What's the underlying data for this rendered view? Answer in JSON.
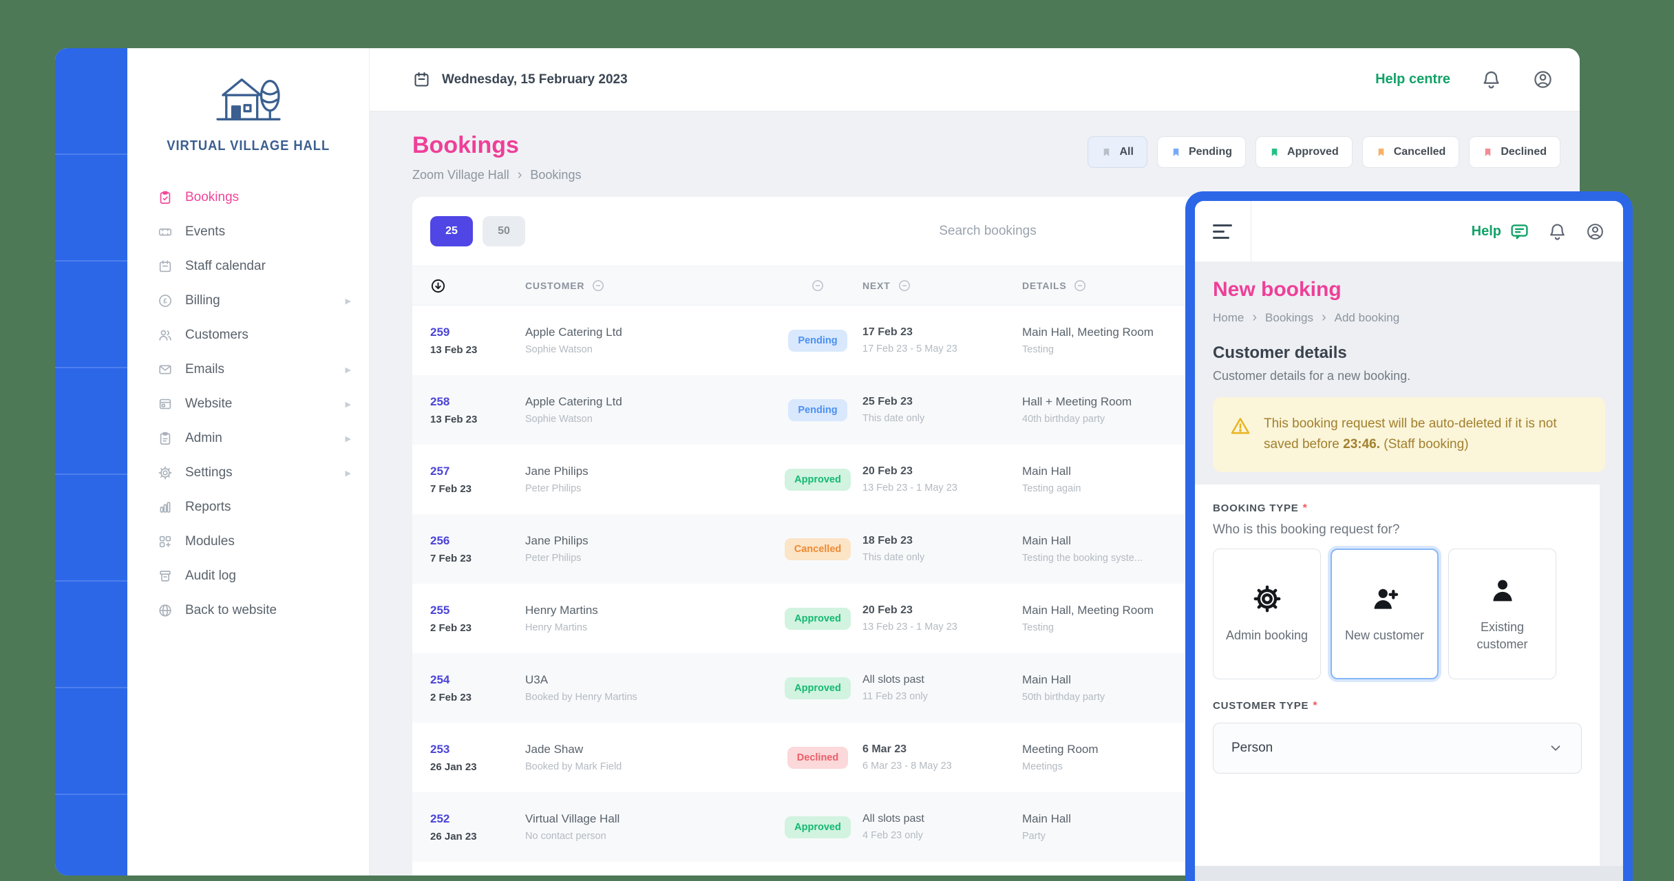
{
  "colors": {
    "background_green": "#4d7957",
    "accent_blue": "#2c67e8",
    "brand_pink": "#ef3f98",
    "help_green": "#12a268",
    "page_size_indigo": "#4f46e5"
  },
  "app": {
    "topbar": {
      "date": "Wednesday, 15 February 2023",
      "help_centre": "Help centre"
    },
    "sidebar": {
      "logo_text": "VIRTUAL VILLAGE HALL",
      "items": [
        {
          "label": "Bookings",
          "icon": "clipboard-check-icon",
          "active": true,
          "arrow": false
        },
        {
          "label": "Events",
          "icon": "ticket-icon",
          "active": false,
          "arrow": false
        },
        {
          "label": "Staff calendar",
          "icon": "calendar-icon",
          "active": false,
          "arrow": false
        },
        {
          "label": "Billing",
          "icon": "pound-icon",
          "active": false,
          "arrow": true
        },
        {
          "label": "Customers",
          "icon": "people-icon",
          "active": false,
          "arrow": false
        },
        {
          "label": "Emails",
          "icon": "envelope-icon",
          "active": false,
          "arrow": true
        },
        {
          "label": "Website",
          "icon": "browser-icon",
          "active": false,
          "arrow": true
        },
        {
          "label": "Admin",
          "icon": "clipboard-list-icon",
          "active": false,
          "arrow": true
        },
        {
          "label": "Settings",
          "icon": "gear-icon",
          "active": false,
          "arrow": true
        },
        {
          "label": "Reports",
          "icon": "chart-icon",
          "active": false,
          "arrow": false
        },
        {
          "label": "Modules",
          "icon": "modules-icon",
          "active": false,
          "arrow": false
        },
        {
          "label": "Audit log",
          "icon": "archive-icon",
          "active": false,
          "arrow": false
        },
        {
          "label": "Back to website",
          "icon": "globe-icon",
          "active": false,
          "arrow": false
        }
      ]
    }
  },
  "bookings": {
    "title": "Bookings",
    "breadcrumb": [
      "Zoom Village Hall",
      "Bookings"
    ],
    "filters": [
      {
        "label": "All",
        "color": "#b9c0c8",
        "active": true
      },
      {
        "label": "Pending",
        "color": "#79a9f8",
        "active": false
      },
      {
        "label": "Approved",
        "color": "#25c183",
        "active": false
      },
      {
        "label": "Cancelled",
        "color": "#f8b066",
        "active": false
      },
      {
        "label": "Declined",
        "color": "#f28b93",
        "active": false
      }
    ],
    "page_sizes": {
      "small": "25",
      "large": "50",
      "active": "25"
    },
    "search_placeholder": "Search bookings",
    "table": {
      "headers": {
        "customer": "CUSTOMER",
        "next": "NEXT",
        "details": "DETAILS"
      },
      "rows": [
        {
          "id": "259",
          "date": "13 Feb 23",
          "customer": "Apple Catering Ltd",
          "contact": "Sophie Watson",
          "status": "Pending",
          "next": "17 Feb 23",
          "next_bold": true,
          "next_sub": "17 Feb 23 - 5 May 23",
          "details": "Main Hall, Meeting Room",
          "details_sub": "Testing"
        },
        {
          "id": "258",
          "date": "13 Feb 23",
          "customer": "Apple Catering Ltd",
          "contact": "Sophie Watson",
          "status": "Pending",
          "next": "25 Feb 23",
          "next_bold": true,
          "next_sub": "This date only",
          "details": "Hall + Meeting Room",
          "details_sub": "40th birthday party"
        },
        {
          "id": "257",
          "date": "7 Feb 23",
          "customer": "Jane Philips",
          "contact": "Peter Philips",
          "status": "Approved",
          "next": "20 Feb 23",
          "next_bold": true,
          "next_sub": "13 Feb 23 - 1 May 23",
          "details": "Main Hall",
          "details_sub": "Testing again"
        },
        {
          "id": "256",
          "date": "7 Feb 23",
          "customer": "Jane Philips",
          "contact": "Peter Philips",
          "status": "Cancelled",
          "next": "18 Feb 23",
          "next_bold": true,
          "next_sub": "This date only",
          "details": "Main Hall",
          "details_sub": "Testing the booking syste..."
        },
        {
          "id": "255",
          "date": "2 Feb 23",
          "customer": "Henry Martins",
          "contact": "Henry Martins",
          "status": "Approved",
          "next": "20 Feb 23",
          "next_bold": true,
          "next_sub": "13 Feb 23 - 1 May 23",
          "details": "Main Hall, Meeting Room",
          "details_sub": "Testing"
        },
        {
          "id": "254",
          "date": "2 Feb 23",
          "customer": "U3A",
          "contact": "Booked by Henry Martins",
          "status": "Approved",
          "next": "All slots past",
          "next_bold": false,
          "next_sub": "11 Feb 23 only",
          "details": "Main Hall",
          "details_sub": "50th birthday party"
        },
        {
          "id": "253",
          "date": "26 Jan 23",
          "customer": "Jade Shaw",
          "contact": "Booked by Mark Field",
          "status": "Declined",
          "next": "6 Mar 23",
          "next_bold": true,
          "next_sub": "6 Mar 23 - 8 May 23",
          "details": "Meeting Room",
          "details_sub": "Meetings"
        },
        {
          "id": "252",
          "date": "26 Jan 23",
          "customer": "Virtual Village Hall",
          "contact": "No contact person",
          "status": "Approved",
          "next": "All slots past",
          "next_bold": false,
          "next_sub": "4 Feb 23 only",
          "details": "Main Hall",
          "details_sub": "Party"
        }
      ]
    }
  },
  "panel": {
    "help_label": "Help",
    "title": "New booking",
    "breadcrumb": [
      "Home",
      "Bookings",
      "Add booking"
    ],
    "section_title": "Customer details",
    "section_sub": "Customer details for a new booking.",
    "warning": {
      "pre": "This booking request will be auto-deleted if it is not saved before ",
      "time": "23:46.",
      "post": " (Staff booking)"
    },
    "booking_type_label": "BOOKING TYPE",
    "required_mark": "*",
    "booking_type_question": "Who is this booking request for?",
    "booking_types": [
      {
        "label": "Admin booking",
        "icon": "gear-icon",
        "selected": false
      },
      {
        "label": "New customer",
        "icon": "person-plus-icon",
        "selected": true
      },
      {
        "label": "Existing customer",
        "icon": "person-icon",
        "selected": false
      }
    ],
    "customer_type_label": "CUSTOMER TYPE",
    "customer_type_value": "Person"
  }
}
